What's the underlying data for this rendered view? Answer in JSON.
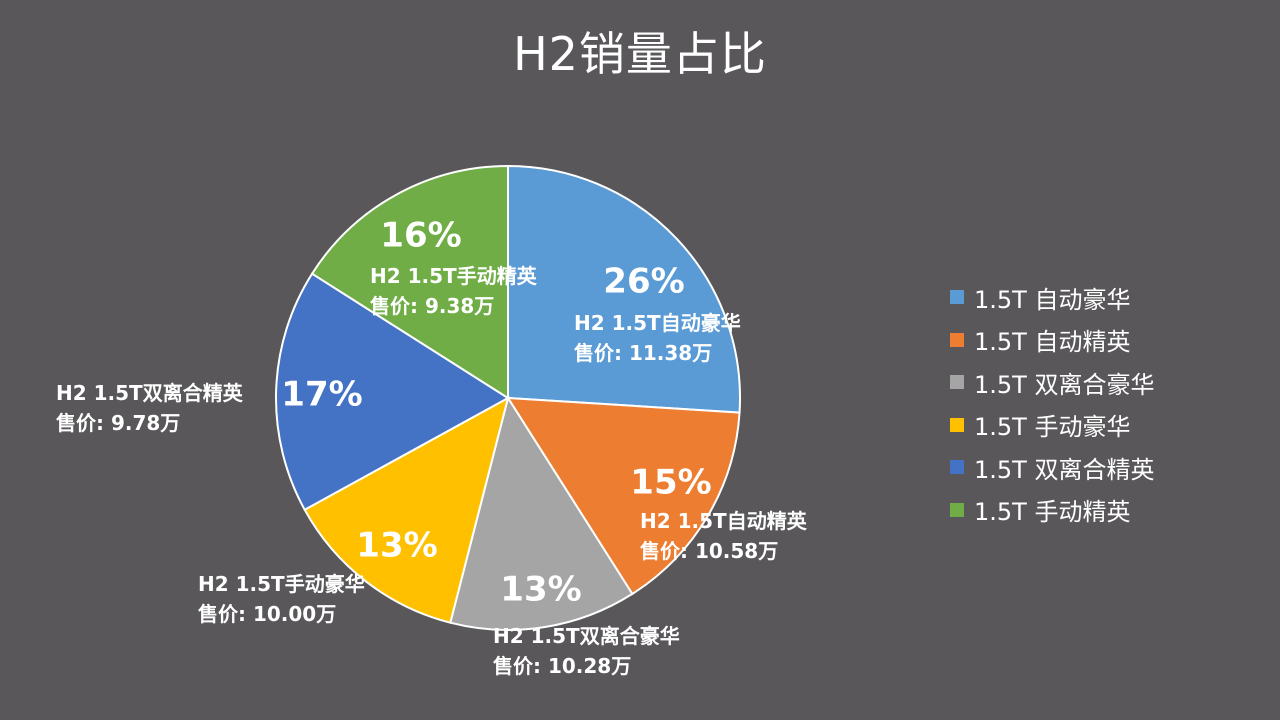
{
  "chart_data": {
    "type": "pie",
    "title": "H2销量占比",
    "legend_position": "right",
    "categories": [
      "1.5T 自动豪华",
      "1.5T 自动精英",
      "1.5T 双离合豪华",
      "1.5T 手动豪华",
      "1.5T 双离合精英",
      "1.5T 手动精英"
    ],
    "values": [
      26,
      15,
      13,
      13,
      17,
      16
    ],
    "value_labels": [
      "26%",
      "15%",
      "13%",
      "13%",
      "17%",
      "16%"
    ],
    "slice_labels": [
      [
        "H2 1.5T自动豪华",
        "售价: 11.38万"
      ],
      [
        "H2 1.5T自动精英",
        "售价: 10.58万"
      ],
      [
        "H2 1.5T双离合豪华",
        "售价: 10.28万"
      ],
      [
        "H2 1.5T手动豪华",
        "售价: 10.00万"
      ],
      [
        "H2 1.5T双离合精英",
        "售价: 9.78万"
      ],
      [
        "H2 1.5T手动精英",
        "售价: 9.38万"
      ]
    ],
    "colors": [
      "#5b9bd5",
      "#ed7d31",
      "#a5a5a5",
      "#ffc000",
      "#4472c4",
      "#70ad47"
    ]
  },
  "background_color": "#59575a"
}
